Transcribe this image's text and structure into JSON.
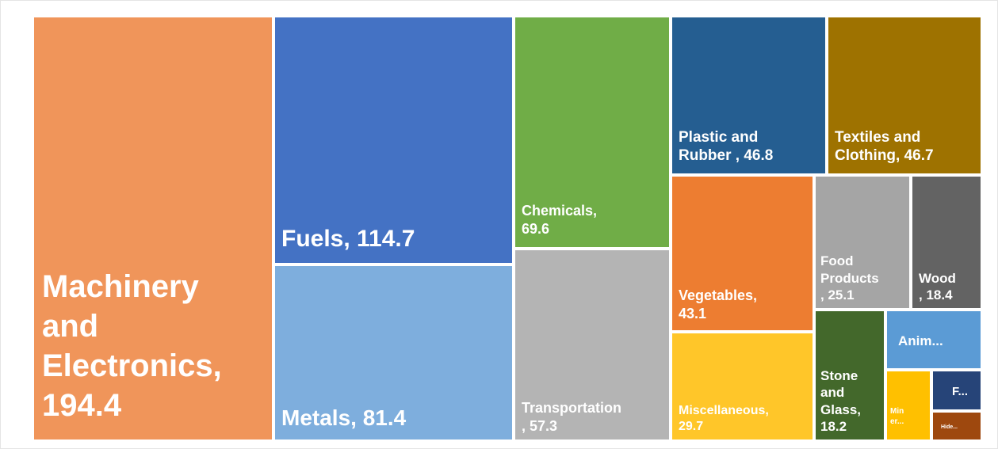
{
  "chart_data": {
    "type": "treemap",
    "title": "",
    "items": [
      {
        "label": "Machinery\nand\nElectronics,\n194.4",
        "name": "Machinery and Electronics",
        "value": 194.4,
        "color": "#f0955a"
      },
      {
        "label": "Fuels, 114.7",
        "name": "Fuels",
        "value": 114.7,
        "color": "#4472c4"
      },
      {
        "label": "Metals, 81.4",
        "name": "Metals",
        "value": 81.4,
        "color": "#7eaedd"
      },
      {
        "label": "Chemicals,\n69.6",
        "name": "Chemicals",
        "value": 69.6,
        "color": "#70ad47"
      },
      {
        "label": "Transportation\n, 57.3",
        "name": "Transportation",
        "value": 57.3,
        "color": "#b4b4b4"
      },
      {
        "label": "Plastic and\nRubber , 46.8",
        "name": "Plastic and Rubber",
        "value": 46.8,
        "color": "#255e91"
      },
      {
        "label": "Textiles and\nClothing, 46.7",
        "name": "Textiles and Clothing",
        "value": 46.7,
        "color": "#9e7200"
      },
      {
        "label": "Vegetables,\n43.1",
        "name": "Vegetables",
        "value": 43.1,
        "color": "#ed7d31"
      },
      {
        "label": "Miscellaneous,\n29.7",
        "name": "Miscellaneous",
        "value": 29.7,
        "color": "#ffc629"
      },
      {
        "label": "Food\nProducts\n, 25.1",
        "name": "Food Products",
        "value": 25.1,
        "color": "#a5a5a5"
      },
      {
        "label": "Wood\n, 18.4",
        "name": "Wood",
        "value": 18.4,
        "color": "#636363"
      },
      {
        "label": "Stone\nand\nGlass,\n18.2",
        "name": "Stone and Glass",
        "value": 18.2,
        "color": "#43682b"
      },
      {
        "label": "Anim...",
        "name": "Animal",
        "value": null,
        "color": "#5b9bd5"
      },
      {
        "label": "Min\ner...",
        "name": "Minerals",
        "value": null,
        "color": "#ffc000"
      },
      {
        "label": "F...",
        "name": "Footwear",
        "value": null,
        "color": "#264478"
      },
      {
        "label": "Hide...",
        "name": "Hides and Skins",
        "value": null,
        "color": "#9e480e"
      }
    ]
  }
}
